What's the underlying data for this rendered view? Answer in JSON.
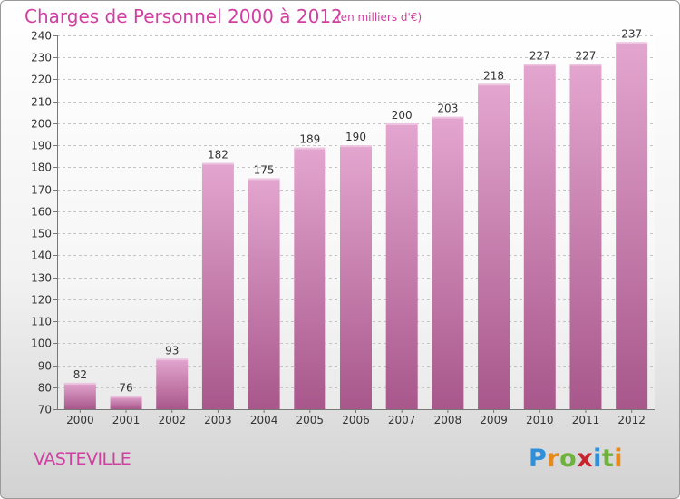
{
  "title": "Charges de Personnel 2000 à 2012",
  "subtitle": "(en milliers d'€)",
  "place_name": "VASTEVILLE",
  "logo": {
    "letters": [
      {
        "ch": "P",
        "color": "#2f8fd8"
      },
      {
        "ch": "r",
        "color": "#e9891a"
      },
      {
        "ch": "o",
        "color": "#6cb33a"
      },
      {
        "ch": "x",
        "color": "#c8232c"
      },
      {
        "ch": "i",
        "color": "#2f8fd8"
      },
      {
        "ch": "t",
        "color": "#6cb33a"
      },
      {
        "ch": "i",
        "color": "#e9891a"
      }
    ]
  },
  "colors": {
    "accent": "#d040a0",
    "bar_light": "#e3a6cf",
    "bar_dark": "#a8578b"
  },
  "chart_data": {
    "type": "bar",
    "categories": [
      "2000",
      "2001",
      "2002",
      "2003",
      "2004",
      "2005",
      "2006",
      "2007",
      "2008",
      "2009",
      "2010",
      "2011",
      "2012"
    ],
    "values": [
      82,
      76,
      93,
      182,
      175,
      189,
      190,
      200,
      203,
      218,
      227,
      227,
      237
    ],
    "title": "Charges de Personnel 2000 à 2012",
    "xlabel": "",
    "ylabel": "",
    "ylim": [
      70,
      240
    ],
    "yticks": [
      70,
      80,
      90,
      100,
      110,
      120,
      130,
      140,
      150,
      160,
      170,
      180,
      190,
      200,
      210,
      220,
      230,
      240
    ],
    "grid": true,
    "legend": "none"
  }
}
